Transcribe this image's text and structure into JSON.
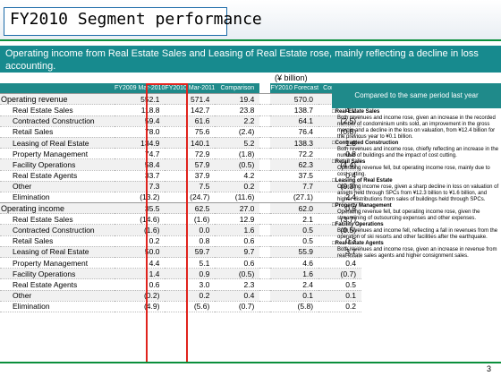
{
  "title": "FY2010 Segment performance",
  "subtitle": "Operating income from Real Estate Sales and Leasing of Real Estate rose, mainly reflecting a decline in loss accounting.",
  "unit": "(¥ billion)",
  "columns": {
    "fy2009": "FY2009 Mar-2010",
    "fy2010": "FY2010 Mar-2011",
    "comparison": "Comparison",
    "fy2010_forecast": "FY2010 Forecast",
    "comparison2": "Comparison",
    "compared_text": "Compared to the same period last year"
  },
  "rows": [
    {
      "label": "Operating revenue",
      "main": true,
      "v": [
        "552.1",
        "571.4",
        "19.4",
        "570.0",
        "1.4"
      ]
    },
    {
      "label": "Real Estate Sales",
      "v": [
        "118.8",
        "142.7",
        "23.8",
        "138.7",
        "4.0"
      ]
    },
    {
      "label": "Contracted Construction",
      "v": [
        "59.4",
        "61.6",
        "2.2",
        "64.1",
        "(2.5)"
      ]
    },
    {
      "label": "Retail Sales",
      "v": [
        "78.0",
        "75.6",
        "(2.4)",
        "76.4",
        "(0.8)"
      ]
    },
    {
      "label": "Leasing of Real Estate",
      "v": [
        "134.9",
        "140.1",
        "5.2",
        "138.3",
        "1.8"
      ]
    },
    {
      "label": "Property Management",
      "v": [
        "74.7",
        "72.9",
        "(1.8)",
        "72.2",
        "0.8"
      ]
    },
    {
      "label": "Facility Operations",
      "v": [
        "58.4",
        "57.9",
        "(0.5)",
        "62.3",
        "(4.4)"
      ]
    },
    {
      "label": "Real Estate Agents",
      "v": [
        "33.7",
        "37.9",
        "4.2",
        "37.5",
        "0.4"
      ]
    },
    {
      "label": "Other",
      "v": [
        "7.3",
        "7.5",
        "0.2",
        "7.7",
        "(0.3)"
      ]
    },
    {
      "label": "Elimination",
      "v": [
        "(13.2)",
        "(24.7)",
        "(11.6)",
        "(27.1)",
        "2.4"
      ]
    },
    {
      "label": "Operating income",
      "main": true,
      "v": [
        "35.5",
        "62.5",
        "27.0",
        "62.0",
        "0.5"
      ]
    },
    {
      "label": "Real Estate Sales",
      "v": [
        "(14.6)",
        "(1.6)",
        "12.9",
        "2.1",
        "(3.7)"
      ]
    },
    {
      "label": "Contracted Construction",
      "v": [
        "(1.6)",
        "0.0",
        "1.6",
        "0.5",
        "(0.5)"
      ]
    },
    {
      "label": "Retail Sales",
      "v": [
        "0.2",
        "0.8",
        "0.6",
        "0.5",
        "0.3"
      ]
    },
    {
      "label": "Leasing of Real Estate",
      "v": [
        "50.0",
        "59.7",
        "9.7",
        "55.9",
        "3.7"
      ]
    },
    {
      "label": "Property Management",
      "v": [
        "4.4",
        "5.1",
        "0.6",
        "4.6",
        "0.4"
      ]
    },
    {
      "label": "Facility Operations",
      "v": [
        "1.4",
        "0.9",
        "(0.5)",
        "1.6",
        "(0.7)"
      ]
    },
    {
      "label": "Real Estate Agents",
      "v": [
        "0.6",
        "3.0",
        "2.3",
        "2.4",
        "0.5"
      ]
    },
    {
      "label": "Other",
      "v": [
        "(0.2)",
        "0.2",
        "0.4",
        "0.1",
        "0.1"
      ]
    },
    {
      "label": "Elimination",
      "v": [
        "(4.9)",
        "(5.6)",
        "(0.7)",
        "(5.8)",
        "0.2"
      ]
    }
  ],
  "comparison_notes": [
    {
      "heading": "□Real Estate Sales",
      "text": "Both revenues and income rose, given an increase in the recorded number of condominium units sold, an improvement in the gross margin and a decline in the loss on valuation, from ¥12.4 billion for the previous year to ¥0.1 billion."
    },
    {
      "heading": "□Contracted Construction",
      "text": "Both revenues and income rose, chiefly reflecting an increase in the number of buildings and the impact of cost cutting."
    },
    {
      "heading": "□Retail Sales",
      "text": "Operating revenue fell, but operating income rose, mainly due to cost cutting."
    },
    {
      "heading": "□Leasing of Real Estate",
      "text": "Operating income rose, given a sharp decline in loss on valuation of assets held through SPCs from ¥12.3 billion to ¥1.6 billion, and higher distributions from sales of buildings held through SPCs."
    },
    {
      "heading": "□Property Management",
      "text": "Operating revenue fell, but operating income rose, given the streamlining of outsourcing expenses and other expenses."
    },
    {
      "heading": "□Facility Operations",
      "text": "Both revenues and income fell, reflecting a fall in revenues from the operation of ski resorts and other facilities after the earthquake."
    },
    {
      "heading": "□Real Estate Agents",
      "text": "Both revenues and income rose, given an increase in revenue from real-estate sales agents and higher consignment sales."
    }
  ],
  "page_number": "3",
  "colors": {
    "accent_teal": "#178a8e",
    "highlight_red": "#e0231d",
    "footer_green": "#0b8f3c"
  }
}
